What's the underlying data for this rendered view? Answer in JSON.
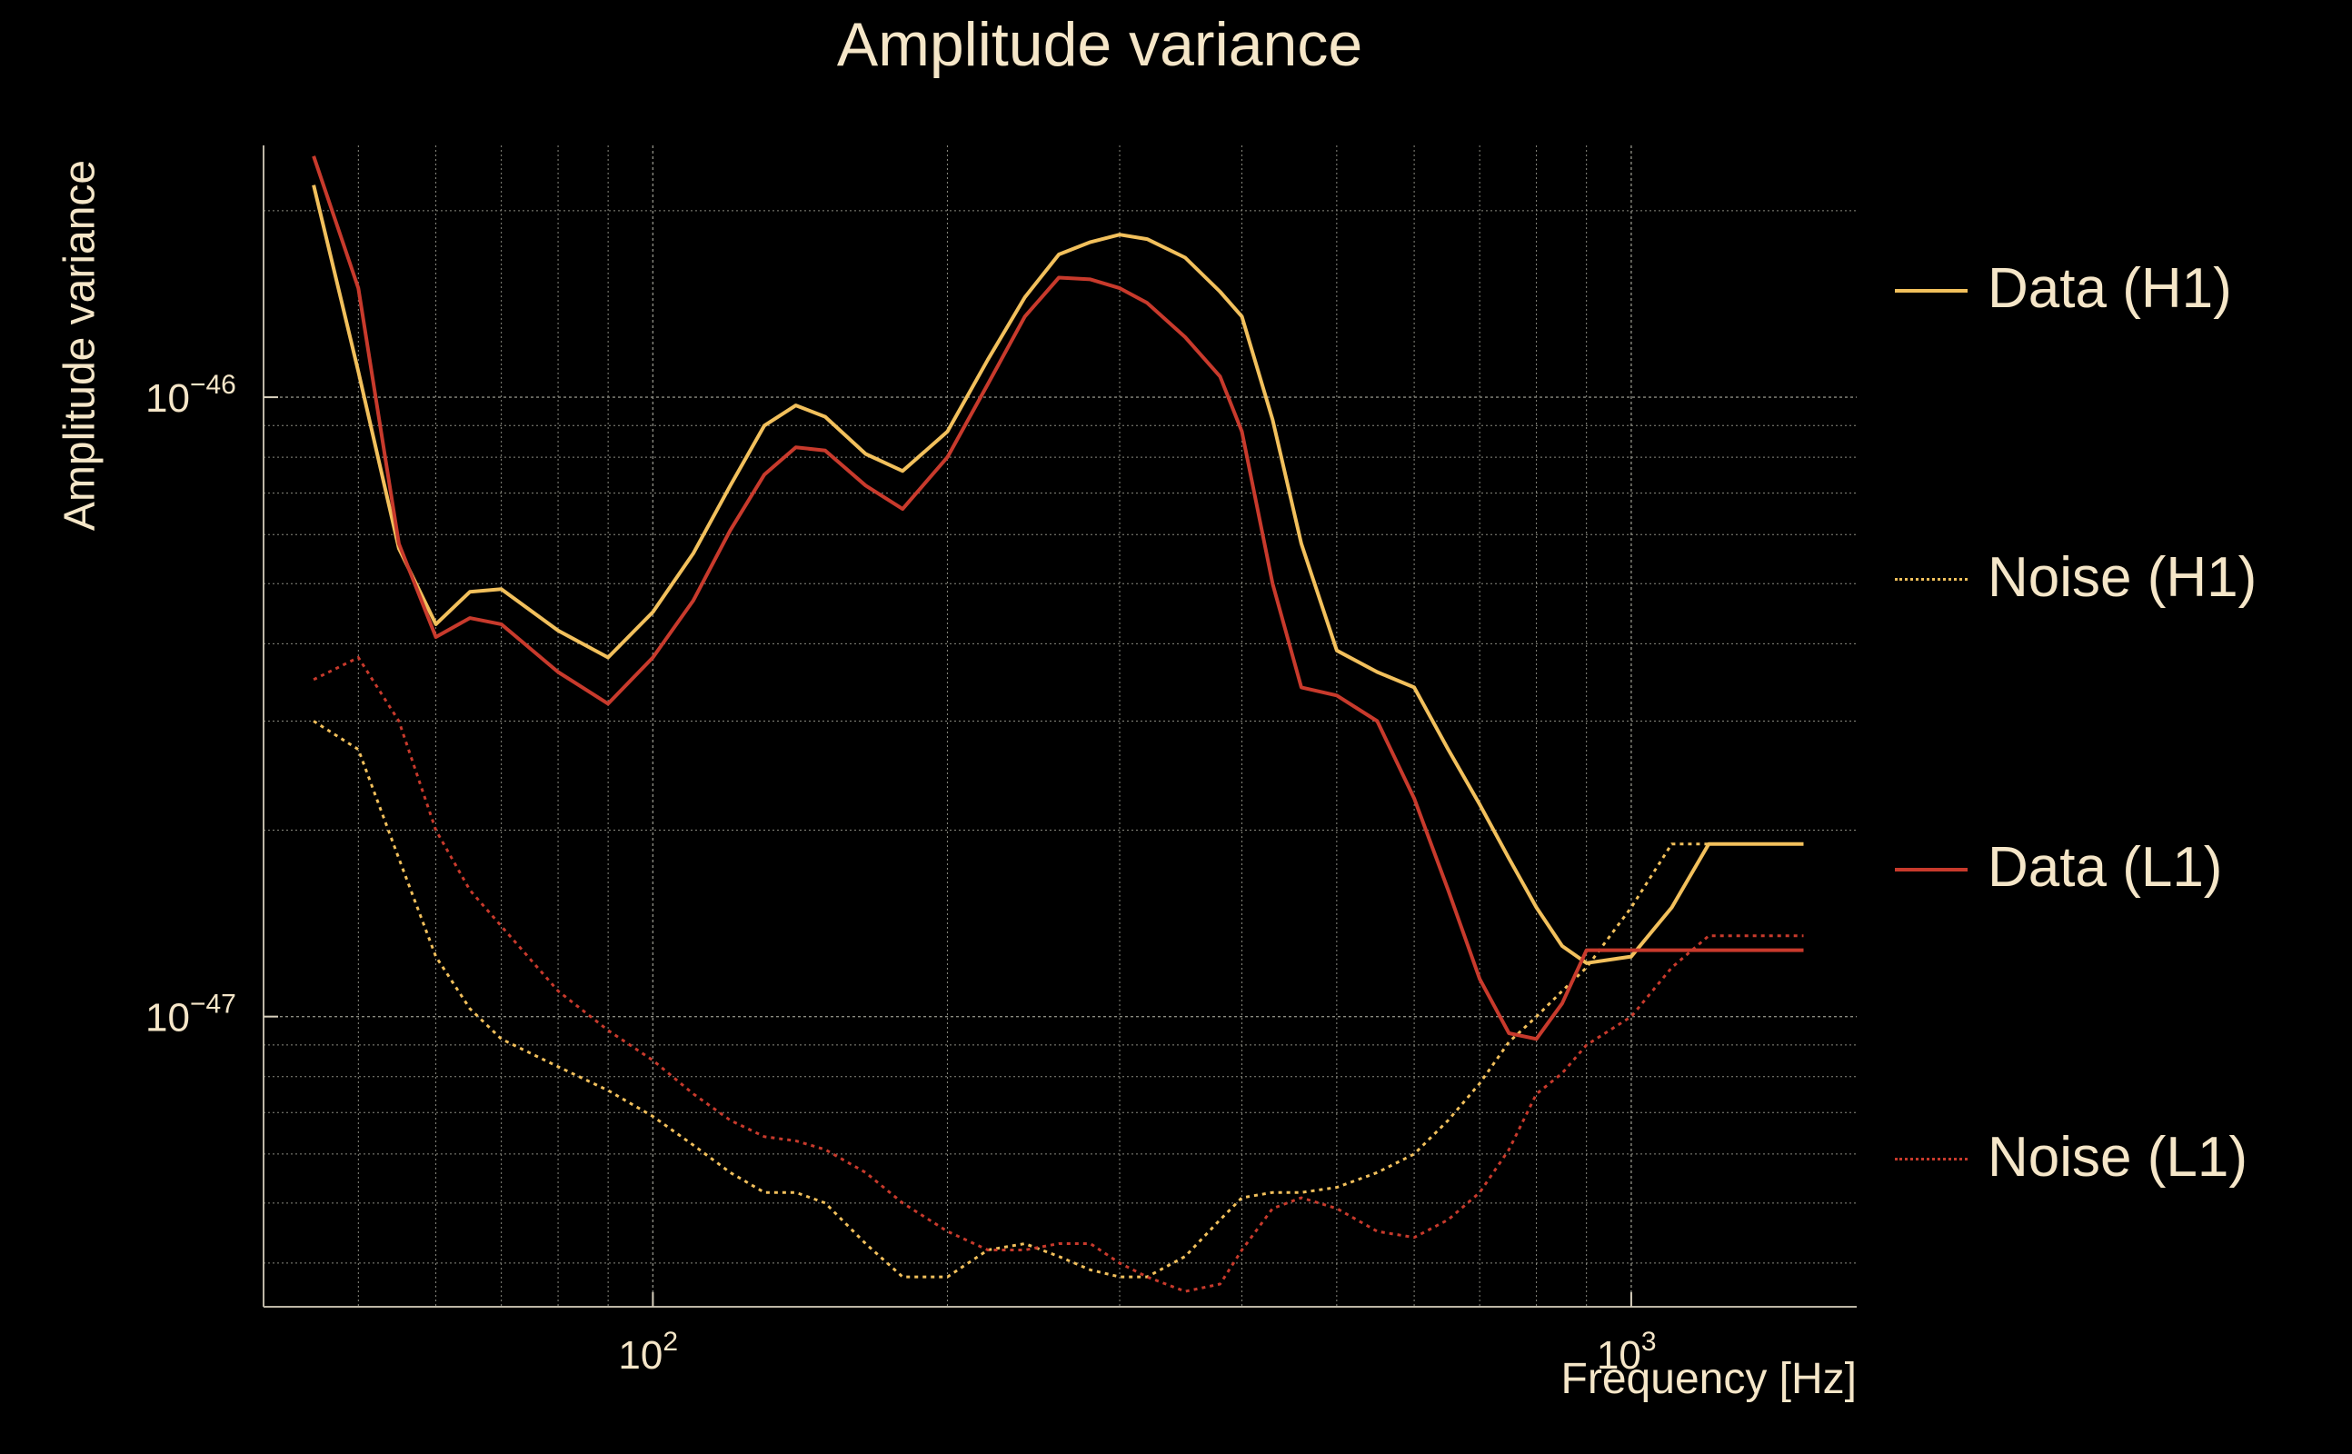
{
  "chart_data": {
    "type": "line",
    "title": "Amplitude variance",
    "xlabel": "Frequency [Hz]",
    "ylabel": "Amplitude variance",
    "x_scale": "log",
    "y_scale": "log",
    "xlim": [
      40,
      1700
    ],
    "ylim": [
      3.4e-48,
      2.55e-46
    ],
    "x_ticks": [
      {
        "value": 100,
        "label": "10",
        "sup": "2"
      },
      {
        "value": 1000,
        "label": "10",
        "sup": "3"
      }
    ],
    "y_ticks": [
      {
        "value": 1e-47,
        "label": "10",
        "sup": "−47"
      },
      {
        "value": 1e-46,
        "label": "10",
        "sup": "−46"
      }
    ],
    "grid": true,
    "legend_position": "right",
    "series": [
      {
        "name": "Data (H1)",
        "color": "#f2c05c",
        "style": "solid",
        "x": [
          45,
          50,
          55,
          60,
          65,
          70,
          80,
          90,
          100,
          110,
          120,
          130,
          140,
          150,
          165,
          180,
          200,
          220,
          240,
          260,
          280,
          300,
          320,
          350,
          380,
          400,
          430,
          460,
          500,
          550,
          600,
          650,
          700,
          750,
          800,
          850,
          900,
          1000,
          1100,
          1200,
          1300,
          1500
        ],
        "y": [
          2.2e-46,
          1.1e-46,
          5.7e-47,
          4.3e-47,
          4.85e-47,
          4.9e-47,
          4.2e-47,
          3.8e-47,
          4.5e-47,
          5.6e-47,
          7.2e-47,
          9e-47,
          9.7e-47,
          9.3e-47,
          8.1e-47,
          7.6e-47,
          8.8e-47,
          1.15e-46,
          1.45e-46,
          1.7e-46,
          1.78e-46,
          1.83e-46,
          1.8e-46,
          1.68e-46,
          1.48e-46,
          1.35e-46,
          9.2e-47,
          5.8e-47,
          3.9e-47,
          3.6e-47,
          3.4e-47,
          2.7e-47,
          2.2e-47,
          1.8e-47,
          1.5e-47,
          1.3e-47,
          1.22e-47,
          1.25e-47,
          1.5e-47,
          1.9e-47,
          1.9e-47,
          1.9e-47
        ]
      },
      {
        "name": "Noise (H1)",
        "color": "#f2c05c",
        "style": "dotted",
        "x": [
          45,
          50,
          55,
          60,
          65,
          70,
          80,
          90,
          100,
          110,
          120,
          130,
          140,
          150,
          165,
          180,
          200,
          220,
          240,
          260,
          280,
          300,
          320,
          350,
          380,
          400,
          430,
          460,
          500,
          550,
          600,
          650,
          700,
          750,
          800,
          850,
          900,
          1000,
          1100,
          1200,
          1300,
          1500
        ],
        "y": [
          3e-47,
          2.7e-47,
          1.8e-47,
          1.25e-47,
          1.03e-47,
          9.2e-48,
          8.3e-48,
          7.6e-48,
          6.9e-48,
          6.2e-48,
          5.6e-48,
          5.2e-48,
          5.2e-48,
          5e-48,
          4.3e-48,
          3.8e-48,
          3.8e-48,
          4.2e-48,
          4.3e-48,
          4.1e-48,
          3.9e-48,
          3.8e-48,
          3.8e-48,
          4.1e-48,
          4.7e-48,
          5.1e-48,
          5.2e-48,
          5.2e-48,
          5.3e-48,
          5.6e-48,
          6e-48,
          6.8e-48,
          7.8e-48,
          9.1e-48,
          1e-47,
          1.1e-47,
          1.2e-47,
          1.5e-47,
          1.9e-47,
          1.9e-47,
          1.9e-47,
          1.9e-47
        ]
      },
      {
        "name": "Data (L1)",
        "color": "#c83a2c",
        "style": "solid",
        "x": [
          45,
          50,
          55,
          60,
          65,
          70,
          80,
          90,
          100,
          110,
          120,
          130,
          140,
          150,
          165,
          180,
          200,
          220,
          240,
          260,
          280,
          300,
          320,
          350,
          380,
          400,
          430,
          460,
          500,
          550,
          600,
          650,
          700,
          750,
          800,
          850,
          900,
          1000,
          1100,
          1200,
          1300,
          1500
        ],
        "y": [
          2.45e-46,
          1.5e-46,
          5.8e-47,
          4.1e-47,
          4.4e-47,
          4.3e-47,
          3.6e-47,
          3.2e-47,
          3.8e-47,
          4.7e-47,
          6.1e-47,
          7.5e-47,
          8.3e-47,
          8.2e-47,
          7.2e-47,
          6.6e-47,
          8e-47,
          1.05e-46,
          1.35e-46,
          1.56e-46,
          1.55e-46,
          1.5e-46,
          1.42e-46,
          1.25e-46,
          1.08e-46,
          8.8e-47,
          5e-47,
          3.4e-47,
          3.3e-47,
          3e-47,
          2.25e-47,
          1.6e-47,
          1.15e-47,
          9.4e-48,
          9.2e-48,
          1.05e-47,
          1.28e-47,
          1.28e-47,
          1.28e-47,
          1.28e-47,
          1.28e-47,
          1.28e-47
        ]
      },
      {
        "name": "Noise (L1)",
        "color": "#c83a2c",
        "style": "dotted",
        "x": [
          45,
          50,
          55,
          60,
          65,
          70,
          80,
          90,
          100,
          110,
          120,
          130,
          140,
          150,
          165,
          180,
          200,
          220,
          240,
          260,
          280,
          300,
          320,
          350,
          380,
          400,
          430,
          460,
          500,
          550,
          600,
          650,
          700,
          750,
          800,
          850,
          900,
          1000,
          1100,
          1200,
          1300,
          1500
        ],
        "y": [
          3.5e-47,
          3.8e-47,
          3e-47,
          2e-47,
          1.6e-47,
          1.4e-47,
          1.1e-47,
          9.5e-48,
          8.5e-48,
          7.5e-48,
          6.8e-48,
          6.4e-48,
          6.3e-48,
          6.1e-48,
          5.6e-48,
          5e-48,
          4.5e-48,
          4.2e-48,
          4.2e-48,
          4.3e-48,
          4.3e-48,
          4e-48,
          3.8e-48,
          3.6e-48,
          3.7e-48,
          4.2e-48,
          4.9e-48,
          5.1e-48,
          4.9e-48,
          4.5e-48,
          4.4e-48,
          4.7e-48,
          5.2e-48,
          6.1e-48,
          7.5e-48,
          8.1e-48,
          9e-48,
          1e-47,
          1.2e-47,
          1.35e-47,
          1.35e-47,
          1.35e-47
        ]
      }
    ]
  }
}
